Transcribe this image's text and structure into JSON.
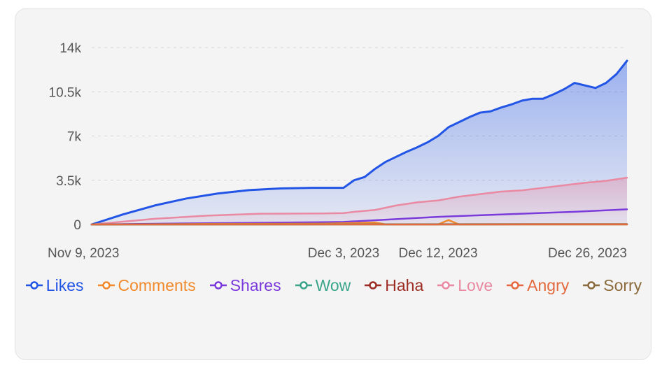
{
  "chart_data": {
    "type": "area",
    "y_ticks": [
      "0",
      "3.5k",
      "7k",
      "10.5k",
      "14k"
    ],
    "ylim": [
      0,
      14000
    ],
    "x_ticks": [
      "Nov 9, 2023",
      "Dec 3, 2023",
      "Dec 12, 2023",
      "Dec 26, 2023"
    ],
    "x_tick_dates": [
      "2023-11-09",
      "2023-12-03",
      "2023-12-12",
      "2023-12-26"
    ],
    "xlim": [
      "2023-11-09",
      "2023-12-30"
    ],
    "grid": true,
    "legend_position": "bottom",
    "series": [
      {
        "name": "Likes",
        "color": "#2255e6",
        "filled": true,
        "x": [
          "2023-11-09",
          "2023-11-12",
          "2023-11-15",
          "2023-11-18",
          "2023-11-21",
          "2023-11-24",
          "2023-11-27",
          "2023-11-30",
          "2023-12-03",
          "2023-12-04",
          "2023-12-05",
          "2023-12-06",
          "2023-12-07",
          "2023-12-08",
          "2023-12-09",
          "2023-12-10",
          "2023-12-11",
          "2023-12-12",
          "2023-12-13",
          "2023-12-14",
          "2023-12-15",
          "2023-12-16",
          "2023-12-17",
          "2023-12-18",
          "2023-12-19",
          "2023-12-20",
          "2023-12-21",
          "2023-12-22",
          "2023-12-23",
          "2023-12-24",
          "2023-12-25",
          "2023-12-26",
          "2023-12-27",
          "2023-12-28",
          "2023-12-29",
          "2023-12-30"
        ],
        "values": [
          0,
          800,
          1500,
          2050,
          2450,
          2720,
          2850,
          2900,
          2900,
          3500,
          3750,
          4400,
          4950,
          5350,
          5750,
          6100,
          6500,
          7000,
          7700,
          8100,
          8500,
          8850,
          8950,
          9250,
          9500,
          9800,
          9950,
          9950,
          10300,
          10700,
          11200,
          11000,
          10800,
          11200,
          11900,
          12950
        ]
      },
      {
        "name": "Comments",
        "color": "#f08a2c",
        "filled": false,
        "x": [
          "2023-11-09",
          "2023-11-20",
          "2023-12-01",
          "2023-12-06",
          "2023-12-07",
          "2023-12-08",
          "2023-12-12",
          "2023-12-13",
          "2023-12-14",
          "2023-12-30"
        ],
        "values": [
          0,
          40,
          60,
          150,
          10,
          0,
          0,
          350,
          0,
          0
        ]
      },
      {
        "name": "Shares",
        "color": "#7b3bdb",
        "filled": false,
        "x": [
          "2023-11-09",
          "2023-11-20",
          "2023-12-01",
          "2023-12-03",
          "2023-12-08",
          "2023-12-12",
          "2023-12-15",
          "2023-12-20",
          "2023-12-25",
          "2023-12-30"
        ],
        "values": [
          0,
          100,
          180,
          200,
          420,
          600,
          700,
          850,
          1000,
          1200
        ]
      },
      {
        "name": "Wow",
        "color": "#3aa58a",
        "filled": false,
        "x": [
          "2023-11-09",
          "2023-12-30"
        ],
        "values": [
          0,
          10
        ]
      },
      {
        "name": "Haha",
        "color": "#9b2d24",
        "filled": false,
        "x": [
          "2023-11-09",
          "2023-12-30"
        ],
        "values": [
          0,
          15
        ]
      },
      {
        "name": "Love",
        "color": "#e98aa2",
        "filled": true,
        "x": [
          "2023-11-09",
          "2023-11-15",
          "2023-11-20",
          "2023-11-25",
          "2023-12-01",
          "2023-12-03",
          "2023-12-04",
          "2023-12-06",
          "2023-12-08",
          "2023-12-10",
          "2023-12-12",
          "2023-12-14",
          "2023-12-16",
          "2023-12-18",
          "2023-12-20",
          "2023-12-22",
          "2023-12-24",
          "2023-12-26",
          "2023-12-28",
          "2023-12-30"
        ],
        "values": [
          0,
          450,
          700,
          850,
          870,
          900,
          1000,
          1150,
          1500,
          1750,
          1900,
          2200,
          2400,
          2600,
          2700,
          2900,
          3100,
          3300,
          3450,
          3700
        ]
      },
      {
        "name": "Angry",
        "color": "#e36a3e",
        "filled": false,
        "x": [
          "2023-11-09",
          "2023-12-30"
        ],
        "values": [
          0,
          5
        ]
      },
      {
        "name": "Sorry",
        "color": "#8b6a3c",
        "filled": false,
        "x": [
          "2023-11-09",
          "2023-12-30"
        ],
        "values": [
          0,
          30
        ]
      }
    ]
  }
}
